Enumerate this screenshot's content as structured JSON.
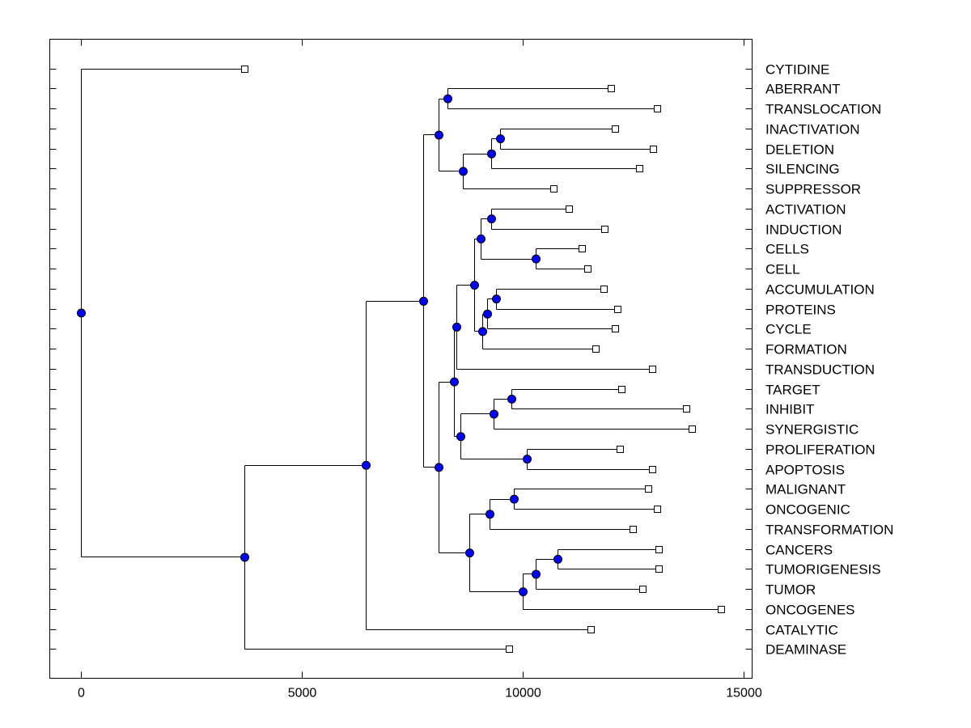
{
  "chart_data": {
    "type": "dendrogram",
    "title": "",
    "xlabel": "",
    "ylabel": "",
    "xlim": [
      -700,
      15200
    ],
    "xticks": [
      0,
      5000,
      10000,
      15000
    ],
    "xtick_labels": [
      "0",
      "5000",
      "10000",
      "15000"
    ],
    "grid": false,
    "colors": {
      "node": "#0000ff",
      "line": "#000000",
      "leaf": "#ffffff"
    },
    "leaves": [
      {
        "label": "CYTIDINE",
        "x": 3700
      },
      {
        "label": "ABERRANT",
        "x": 12000
      },
      {
        "label": "TRANSLOCATION",
        "x": 13050
      },
      {
        "label": "INACTIVATION",
        "x": 12100
      },
      {
        "label": "DELETION",
        "x": 12950
      },
      {
        "label": "SILENCING",
        "x": 12650
      },
      {
        "label": "SUPPRESSOR",
        "x": 10700
      },
      {
        "label": "ACTIVATION",
        "x": 11050
      },
      {
        "label": "INDUCTION",
        "x": 11850
      },
      {
        "label": "CELLS",
        "x": 11350
      },
      {
        "label": "CELL",
        "x": 11480
      },
      {
        "label": "ACCUMULATION",
        "x": 11830
      },
      {
        "label": "PROTEINS",
        "x": 12150
      },
      {
        "label": "CYCLE",
        "x": 12100
      },
      {
        "label": "FORMATION",
        "x": 11650
      },
      {
        "label": "TRANSDUCTION",
        "x": 12930
      },
      {
        "label": "TARGET",
        "x": 12250
      },
      {
        "label": "INHIBIT",
        "x": 13700
      },
      {
        "label": "SYNERGISTIC",
        "x": 13830
      },
      {
        "label": "PROLIFERATION",
        "x": 12200
      },
      {
        "label": "APOPTOSIS",
        "x": 12930
      },
      {
        "label": "MALIGNANT",
        "x": 12850
      },
      {
        "label": "ONCOGENIC",
        "x": 13050
      },
      {
        "label": "TRANSFORMATION",
        "x": 12500
      },
      {
        "label": "CANCERS",
        "x": 13080
      },
      {
        "label": "TUMORIGENESIS",
        "x": 13080
      },
      {
        "label": "TUMOR",
        "x": 12720
      },
      {
        "label": "ONCOGENES",
        "x": 14500
      },
      {
        "label": "CATALYTIC",
        "x": 11550
      },
      {
        "label": "DEAMINASE",
        "x": 9700
      }
    ],
    "merges": [
      {
        "a": "L9",
        "b": "L10",
        "x": 10300
      },
      {
        "a": "L3",
        "b": "L4",
        "x": 9500
      },
      {
        "a": "L24",
        "b": "L25",
        "x": 10800
      },
      {
        "a": "L16",
        "b": "L17",
        "x": 9750
      },
      {
        "a": "L19",
        "b": "L20",
        "x": 10100
      },
      {
        "a": "L21",
        "b": "L22",
        "x": 9800
      },
      {
        "a": "L7",
        "b": "L8",
        "x": 9300
      },
      {
        "a": "L11",
        "b": "L12",
        "x": 9400
      },
      {
        "a": "N7",
        "b": "L13",
        "x": 9200
      },
      {
        "a": "N8",
        "b": "L14",
        "x": 9100
      },
      {
        "a": "N0",
        "b": "N6",
        "x": 9050
      },
      {
        "a": "N9",
        "b": "N10",
        "x": 8900
      },
      {
        "a": "N2",
        "b": "L26",
        "x": 10300
      },
      {
        "a": "N12",
        "b": "L27",
        "x": 10000
      },
      {
        "a": "N1",
        "b": "L5",
        "x": 9300
      },
      {
        "a": "N14",
        "b": "L6",
        "x": 8650
      },
      {
        "a": "L1",
        "b": "L2",
        "x": 8300
      },
      {
        "a": "N16",
        "b": "N15",
        "x": 8100
      },
      {
        "a": "N11",
        "b": "L15",
        "x": 8500
      },
      {
        "a": "N3",
        "b": "L18",
        "x": 9350
      },
      {
        "a": "N19",
        "b": "N4",
        "x": 8600
      },
      {
        "a": "N18",
        "b": "N20",
        "x": 8450
      },
      {
        "a": "N5",
        "b": "L23",
        "x": 9250
      },
      {
        "a": "N22",
        "b": "N13",
        "x": 8800
      },
      {
        "a": "N21",
        "b": "N23",
        "x": 8100
      },
      {
        "a": "N17",
        "b": "N24",
        "x": 7750
      },
      {
        "a": "N25",
        "b": "L28",
        "x": 6450
      },
      {
        "a": "N26",
        "b": "L29",
        "x": 3700
      },
      {
        "a": "L0",
        "b": "N27",
        "x": 0
      }
    ]
  }
}
